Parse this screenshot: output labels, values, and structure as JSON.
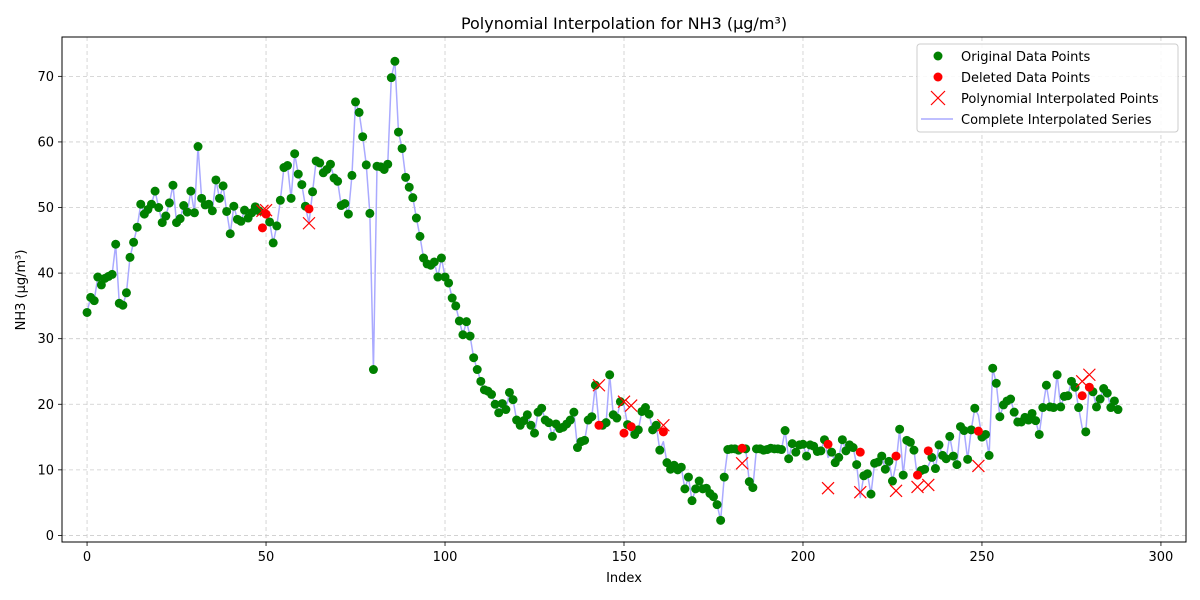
{
  "chart_data": {
    "type": "scatter",
    "title": "Polynomial Interpolation for NH3 (µg/m³)",
    "xlabel": "Index",
    "ylabel": "NH3 (µg/m³)",
    "xlim": [
      -7,
      307
    ],
    "ylim": [
      -1,
      76
    ],
    "xticks": [
      0,
      50,
      100,
      150,
      200,
      250,
      300
    ],
    "yticks": [
      0,
      10,
      20,
      30,
      40,
      50,
      60,
      70
    ],
    "grid": true,
    "legend_position": "top-right",
    "colors": {
      "original": "#008000",
      "deleted": "#ff0000",
      "interpolated": "#ff0000",
      "series": "#aaaaff"
    },
    "legend": [
      {
        "key": "original",
        "label": "Original Data Points"
      },
      {
        "key": "deleted",
        "label": "Deleted Data Points"
      },
      {
        "key": "interpolated",
        "label": "Polynomial Interpolated Points"
      },
      {
        "key": "series",
        "label": "Complete Interpolated Series"
      }
    ],
    "series_values": [
      34.0,
      36.3,
      35.8,
      39.4,
      38.2,
      39.2,
      39.5,
      39.8,
      44.4,
      35.4,
      35.1,
      37.0,
      42.4,
      44.7,
      47.0,
      50.5,
      49.0,
      49.7,
      50.5,
      52.5,
      50.0,
      47.7,
      48.7,
      50.7,
      53.4,
      47.7,
      48.3,
      50.3,
      49.3,
      52.5,
      49.2,
      59.3,
      51.4,
      50.4,
      50.5,
      49.5,
      54.2,
      51.4,
      53.3,
      49.4,
      46.0,
      50.2,
      48.2,
      47.9,
      49.6,
      48.4,
      49.2,
      50.1,
      49.5,
      49.6,
      49.0,
      47.8,
      44.6,
      47.2,
      51.1,
      56.1,
      56.4,
      51.4,
      58.2,
      55.1,
      53.5,
      50.2,
      47.6,
      52.4,
      57.1,
      56.8,
      55.3,
      55.8,
      56.6,
      54.5,
      54.0,
      50.3,
      50.6,
      49.0,
      54.9,
      66.1,
      64.5,
      60.8,
      56.5,
      49.1,
      25.3,
      56.3,
      56.2,
      55.8,
      56.6,
      69.8,
      72.3,
      61.5,
      59.0,
      54.6,
      53.1,
      51.5,
      48.4,
      45.6,
      42.3,
      41.4,
      41.2,
      41.7,
      39.4,
      42.3,
      39.4,
      38.5,
      36.2,
      35.0,
      32.7,
      30.6,
      32.6,
      30.4,
      27.1,
      25.3,
      23.5,
      22.2,
      22.0,
      21.5,
      20.0,
      18.7,
      20.1,
      19.2,
      21.8,
      20.7,
      17.6,
      16.8,
      17.5,
      18.4,
      16.8,
      15.6,
      18.8,
      19.4,
      17.6,
      17.2,
      15.1,
      17.0,
      16.3,
      16.5,
      17.0,
      17.6,
      18.8,
      13.4,
      14.3,
      14.5,
      17.6,
      18.1,
      22.9,
      17.0,
      16.8,
      17.2,
      24.5,
      18.4,
      17.9,
      20.4,
      19.8,
      16.9,
      15.6,
      15.4,
      16.1,
      18.9,
      19.5,
      18.5,
      16.1,
      16.8,
      13.0,
      14.3,
      11.1,
      10.1,
      10.7,
      10.0,
      10.4,
      7.1,
      8.9,
      5.3,
      7.1,
      8.3,
      7.1,
      7.2,
      6.4,
      5.9,
      4.7,
      2.3,
      8.9,
      13.1,
      13.2,
      13.2,
      13.0,
      13.1,
      13.2,
      8.2,
      7.3,
      13.2,
      13.2,
      13.0,
      13.1,
      13.3,
      13.2,
      13.2,
      13.1,
      16.0,
      11.7,
      14.0,
      12.7,
      13.8,
      13.9,
      12.1,
      13.8,
      13.6,
      12.8,
      12.9,
      14.6,
      11.9,
      12.7,
      11.1,
      11.9,
      14.6,
      12.9,
      13.8,
      13.4,
      10.8,
      5.8,
      9.1,
      9.4,
      6.3,
      11.0,
      11.2,
      12.1,
      10.1,
      11.3,
      8.3,
      10.9,
      16.2,
      9.2,
      14.5,
      14.2,
      13.0,
      8.7,
      9.9,
      10.1,
      10.6,
      11.9,
      10.2,
      13.8,
      12.2,
      11.7,
      15.1,
      12.1,
      10.8,
      16.6,
      16.0,
      11.6,
      16.1,
      19.4,
      18.3,
      15.0,
      15.4,
      12.2,
      25.5,
      23.2,
      18.1,
      19.9,
      20.5,
      20.8,
      18.8,
      17.3,
      17.3,
      18.0,
      17.6,
      18.6,
      17.5,
      15.4,
      19.5,
      22.9,
      19.6,
      19.5,
      24.5,
      19.6,
      21.2,
      21.3,
      23.5,
      22.6,
      19.5,
      16.4,
      15.8,
      23.0,
      21.9,
      19.6,
      20.8,
      22.4,
      21.7,
      19.5,
      20.5,
      19.2
    ],
    "deleted_points": [
      {
        "x": 49,
        "y": 46.9
      },
      {
        "x": 50,
        "y": 49.0
      },
      {
        "x": 62,
        "y": 49.8
      },
      {
        "x": 143,
        "y": 16.8
      },
      {
        "x": 150,
        "y": 15.6
      },
      {
        "x": 152,
        "y": 16.6
      },
      {
        "x": 161,
        "y": 15.8
      },
      {
        "x": 183,
        "y": 13.3
      },
      {
        "x": 207,
        "y": 13.9
      },
      {
        "x": 216,
        "y": 12.7
      },
      {
        "x": 226,
        "y": 12.1
      },
      {
        "x": 232,
        "y": 9.2
      },
      {
        "x": 235,
        "y": 12.9
      },
      {
        "x": 249,
        "y": 15.9
      },
      {
        "x": 278,
        "y": 21.3
      },
      {
        "x": 280,
        "y": 22.6
      }
    ],
    "interpolated_points": [
      {
        "x": 49,
        "y": 49.5
      },
      {
        "x": 50,
        "y": 49.6
      },
      {
        "x": 62,
        "y": 47.6
      },
      {
        "x": 143,
        "y": 22.9
      },
      {
        "x": 150,
        "y": 20.4
      },
      {
        "x": 152,
        "y": 19.8
      },
      {
        "x": 161,
        "y": 16.8
      },
      {
        "x": 183,
        "y": 11.0
      },
      {
        "x": 207,
        "y": 7.2
      },
      {
        "x": 216,
        "y": 6.6
      },
      {
        "x": 226,
        "y": 6.8
      },
      {
        "x": 232,
        "y": 7.4
      },
      {
        "x": 235,
        "y": 7.7
      },
      {
        "x": 249,
        "y": 10.6
      },
      {
        "x": 278,
        "y": 23.5
      },
      {
        "x": 280,
        "y": 24.5
      }
    ]
  }
}
